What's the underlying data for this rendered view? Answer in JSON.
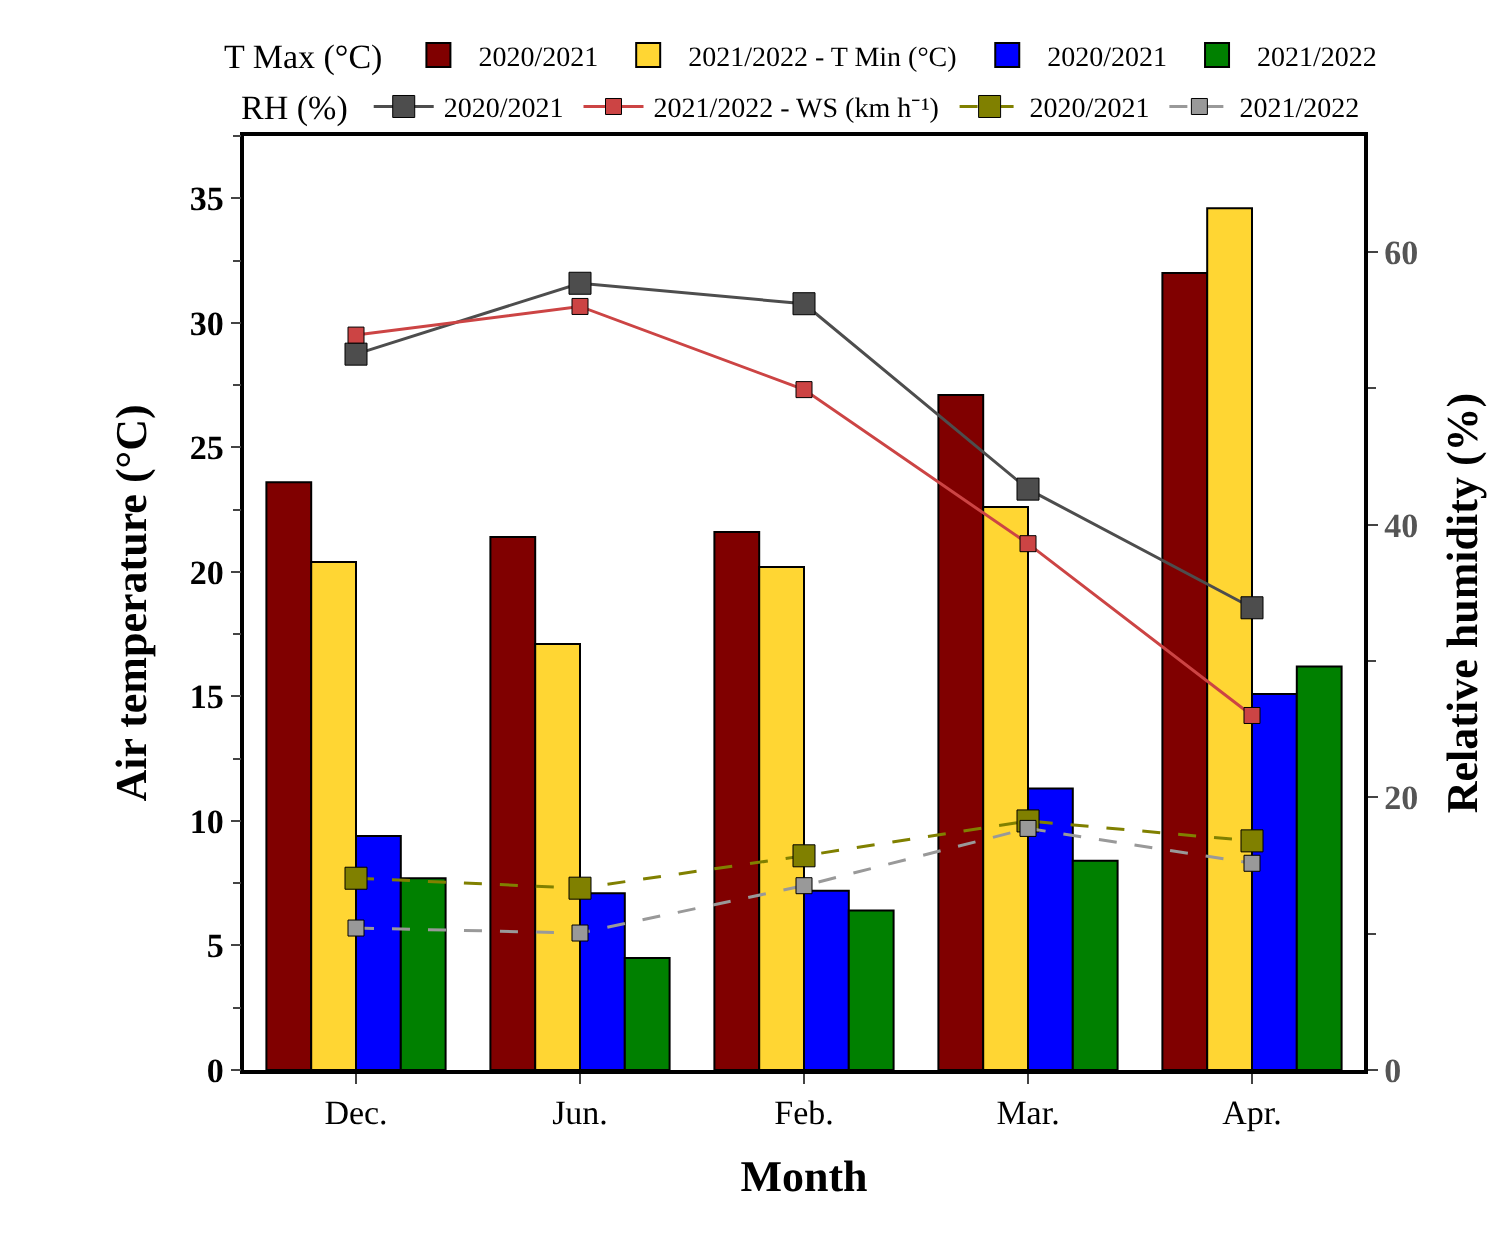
{
  "chart_data": {
    "type": "bar",
    "xlabel": "Month",
    "ylabel": "Air temperature (°C)",
    "y2label": "Relative humidity (%)",
    "legend_title": "T Max (°C)",
    "annotations": [
      "RH (%)"
    ],
    "categories": [
      "Dec.",
      "Jun.",
      "Feb.",
      "Mar.",
      "Apr."
    ],
    "ylim": [
      0,
      37.5
    ],
    "yticks": [
      0,
      5,
      10,
      15,
      20,
      25,
      30,
      35
    ],
    "y2lim": [
      0,
      68.5
    ],
    "y2ticks": [
      0,
      20,
      40,
      60
    ],
    "legend": "top",
    "series": [
      {
        "name": "2020/2021",
        "color": "#800000",
        "values": [
          23.6,
          21.4,
          21.6,
          27.1,
          32.0
        ]
      },
      {
        "name": "2021/2022 - T Min (°C)",
        "color": "#ffd633",
        "values": [
          20.4,
          17.1,
          20.2,
          22.6,
          34.6
        ]
      },
      {
        "name": "2020/2021",
        "color": "#0000ff",
        "values": [
          9.4,
          7.1,
          7.2,
          11.3,
          15.1
        ]
      },
      {
        "name": "2021/2022",
        "color": "#008000",
        "values": [
          7.7,
          4.5,
          6.4,
          8.4,
          16.2
        ]
      },
      {
        "name": "2020/2021",
        "type": "line",
        "axis": "y2",
        "marker": "square",
        "line_style": "solid",
        "color": "#4d4d4d",
        "values": [
          52.5,
          57.7,
          56.2,
          42.6,
          33.9
        ]
      },
      {
        "name": "2021/2022 - WS (km h⁻¹)",
        "type": "line",
        "axis": "y2",
        "marker": "square",
        "line_style": "solid",
        "color": "#cc4444",
        "values": [
          53.9,
          56.0,
          49.9,
          38.6,
          26.0
        ]
      },
      {
        "name": "2020/2021",
        "type": "line",
        "marker": "square",
        "line_style": "dashed",
        "color": "#808000",
        "values": [
          7.7,
          7.3,
          8.6,
          10.0,
          9.2
        ]
      },
      {
        "name": "2021/2022",
        "type": "line",
        "marker": "square",
        "line_style": "dashed",
        "color": "#999999",
        "values": [
          5.7,
          5.5,
          7.4,
          9.7,
          8.3
        ]
      }
    ]
  }
}
